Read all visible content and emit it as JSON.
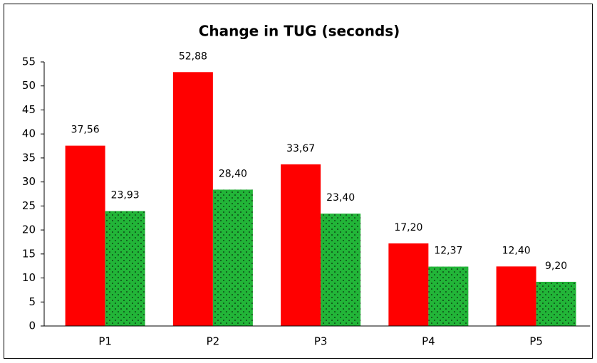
{
  "chart_data": {
    "type": "bar",
    "title": "Change in TUG (seconds)",
    "categories": [
      "P1",
      "P2",
      "P3",
      "P4",
      "P5"
    ],
    "series": [
      {
        "color": "#ff0000",
        "values": [
          37.56,
          52.88,
          33.67,
          17.2,
          12.4
        ],
        "value_labels": [
          "37,56",
          "52,88",
          "33,67",
          "17,20",
          "12,40"
        ]
      },
      {
        "color": "#22b538",
        "pattern": "dots",
        "values": [
          23.93,
          28.4,
          23.4,
          12.37,
          9.2
        ],
        "value_labels": [
          "23,93",
          "28,40",
          "23,40",
          "12,37",
          "9,20"
        ]
      }
    ],
    "ylim": [
      0,
      55
    ],
    "yticks": [
      0,
      5,
      10,
      15,
      20,
      25,
      30,
      35,
      40,
      45,
      50,
      55
    ],
    "grid": false
  }
}
